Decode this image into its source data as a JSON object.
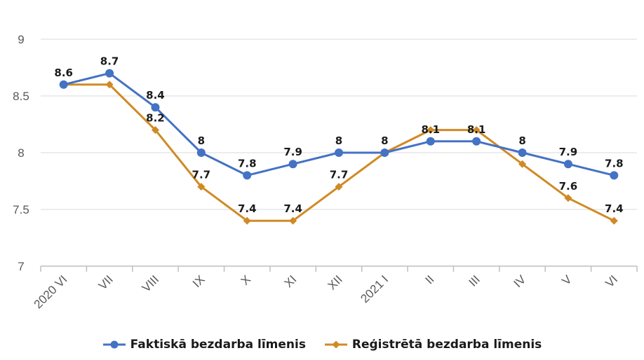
{
  "chart_data": {
    "type": "line",
    "categories": [
      "2020 VI",
      "VII",
      "VIII",
      "IX",
      "X",
      "XI",
      "XII",
      "2021 I",
      "II",
      "III",
      "IV",
      "V",
      "VI"
    ],
    "ylim": [
      7,
      9
    ],
    "yticks": [
      "7",
      "7.5",
      "8",
      "8.5",
      "9"
    ],
    "grid": true,
    "legend_position": "bottom",
    "series": [
      {
        "name": "Faktiskā bezdarba līmenis",
        "color": "#4472c4",
        "marker": "circle",
        "values": [
          8.6,
          8.7,
          8.4,
          8.0,
          7.8,
          7.9,
          8.0,
          8.0,
          8.1,
          8.1,
          8.0,
          7.9,
          7.8
        ],
        "labels": [
          "8.6",
          "8.7",
          "8.4",
          "8",
          "7.8",
          "7.9",
          "8",
          "8",
          "8.1",
          "8.1",
          "8",
          "7.9",
          "7.8"
        ]
      },
      {
        "name": "Reģistrētā bezdarba līmenis",
        "color": "#d08a24",
        "marker": "diamond",
        "values": [
          8.6,
          8.6,
          8.2,
          7.7,
          7.4,
          7.4,
          7.7,
          8.0,
          8.2,
          8.2,
          7.9,
          7.6,
          7.4
        ],
        "labels": [
          "",
          "",
          "8.2",
          "7.7",
          "7.4",
          "7.4",
          "7.7",
          "",
          "",
          "",
          "",
          "7.6",
          "7.4"
        ]
      }
    ]
  }
}
